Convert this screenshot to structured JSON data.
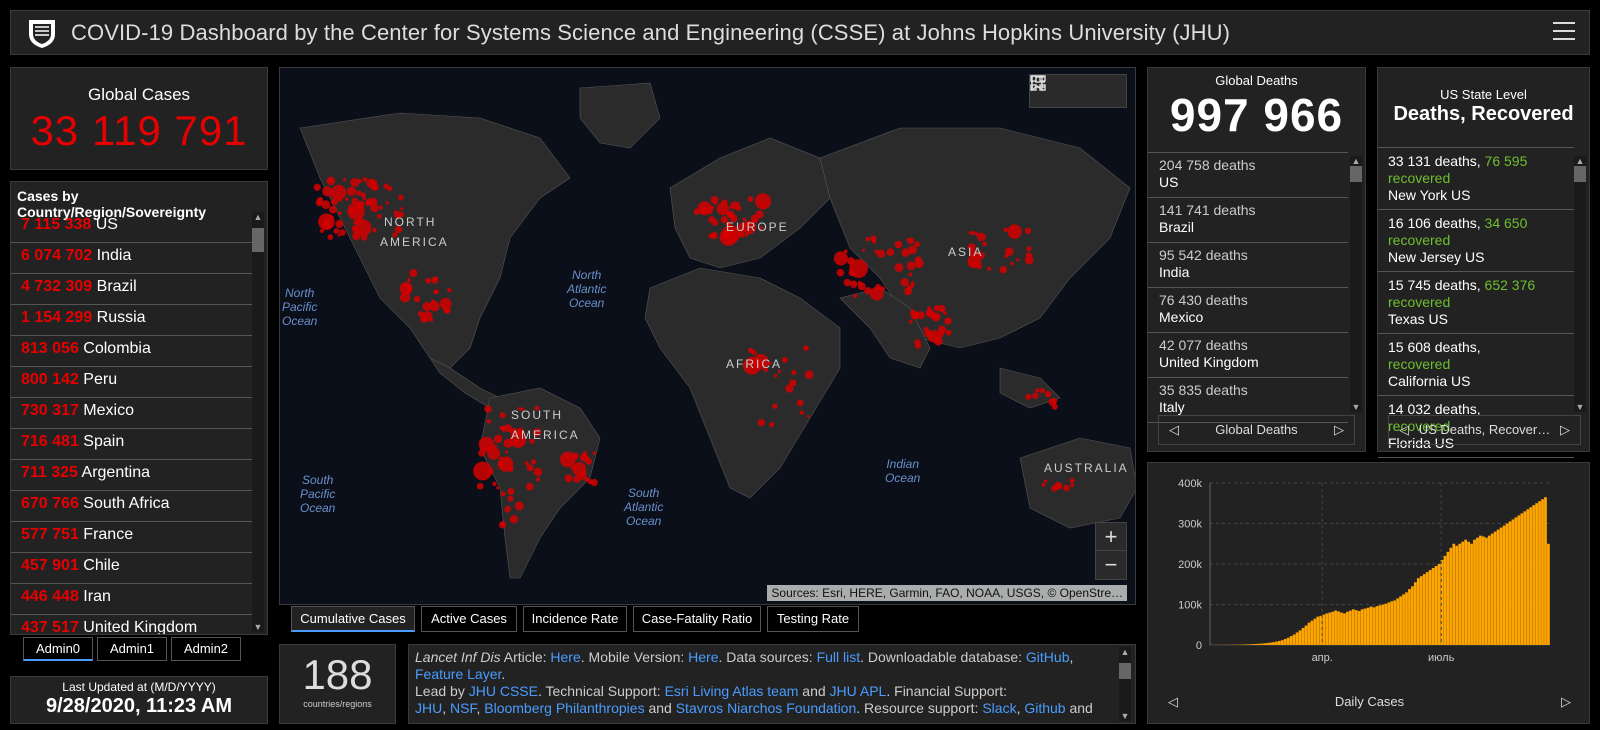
{
  "header": {
    "title": "COVID-19 Dashboard by the Center for Systems Science and Engineering (CSSE) at Johns Hopkins University (JHU)"
  },
  "global_cases": {
    "label": "Global Cases",
    "value": "33 119 791"
  },
  "country_list": {
    "header": "Cases by Country/Region/Sovereignty",
    "items": [
      {
        "count": "7 115 338",
        "name": "US"
      },
      {
        "count": "6 074 702",
        "name": "India"
      },
      {
        "count": "4 732 309",
        "name": "Brazil"
      },
      {
        "count": "1 154 299",
        "name": "Russia"
      },
      {
        "count": "813 056",
        "name": "Colombia"
      },
      {
        "count": "800 142",
        "name": "Peru"
      },
      {
        "count": "730 317",
        "name": "Mexico"
      },
      {
        "count": "716 481",
        "name": "Spain"
      },
      {
        "count": "711 325",
        "name": "Argentina"
      },
      {
        "count": "670 766",
        "name": "South Africa"
      },
      {
        "count": "577 751",
        "name": "France"
      },
      {
        "count": "457 901",
        "name": "Chile"
      },
      {
        "count": "446 448",
        "name": "Iran"
      },
      {
        "count": "437 517",
        "name": "United Kingdom"
      }
    ]
  },
  "admin_tabs": [
    "Admin0",
    "Admin1",
    "Admin2"
  ],
  "last_updated": {
    "label": "Last Updated at (M/D/YYYY)",
    "value": "9/28/2020, 11:23 AM"
  },
  "map": {
    "continents": [
      "NORTH",
      "AMERICA",
      "EUROPE",
      "ASIA",
      "AFRICA",
      "SOUTH",
      "AMERICA",
      "AUSTRALIA"
    ],
    "oceans": [
      [
        "North",
        "Pacific",
        "Ocean"
      ],
      [
        "North",
        "Atlantic",
        "Ocean"
      ],
      [
        "South",
        "Pacific",
        "Ocean"
      ],
      [
        "South",
        "Atlantic",
        "Ocean"
      ],
      [
        "Indian",
        "Ocean"
      ]
    ],
    "attribution": "Sources: Esri, HERE, Garmin, FAO, NOAA, USGS, © OpenStre…",
    "zoom_in": "+",
    "zoom_out": "−",
    "tools": [
      "bookmark-icon",
      "list-icon",
      "qr-icon"
    ]
  },
  "map_tabs": [
    "Cumulative Cases",
    "Active Cases",
    "Incidence Rate",
    "Case-Fatality Ratio",
    "Testing Rate"
  ],
  "countries_count": {
    "value": "188",
    "label": "countries/regions"
  },
  "info": {
    "line1_prefix": "Lancet Inf Dis",
    "line1_a": " Article: ",
    "link_here1": "Here",
    "line1_b": ". Mobile Version: ",
    "link_here2": "Here",
    "line1_c": ". Data sources: ",
    "link_fulllist": "Full list",
    "line1_d": ". Downloadable database: ",
    "link_github": "GitHub",
    "line1_e": ",",
    "link_feature": "Feature Layer",
    "line1_f": ".",
    "line2_a": "Lead by ",
    "link_jhucsse": "JHU CSSE",
    "line2_b": ". Technical Support: ",
    "link_esri": "Esri Living Atlas team",
    "line2_c": " and ",
    "link_jhuapl": "JHU APL",
    "line2_d": ". Financial Support:",
    "link_jhu": "JHU",
    "line3_a": ", ",
    "link_nsf": "NSF",
    "line3_b": ", ",
    "link_bloomberg": "Bloomberg Philanthropies",
    "line3_c": " and ",
    "link_stavros": "Stavros Niarchos Foundation",
    "line3_d": ". Resource support: ",
    "link_slack": "Slack",
    "line3_e": ", ",
    "link_github2": "Github",
    "line3_f": " and"
  },
  "global_deaths": {
    "label": "Global Deaths",
    "value": "997 966",
    "unit": "deaths",
    "items": [
      {
        "count": "204 758",
        "name": "US"
      },
      {
        "count": "141 741",
        "name": "Brazil"
      },
      {
        "count": "95 542",
        "name": "India"
      },
      {
        "count": "76 430",
        "name": "Mexico"
      },
      {
        "count": "42 077",
        "name": "United Kingdom"
      },
      {
        "count": "35 835",
        "name": "Italy"
      }
    ],
    "footer": "Global Deaths"
  },
  "us_panel": {
    "label": "US State Level",
    "title": "Deaths, Recovered",
    "items": [
      {
        "deaths": "33 131 deaths,",
        "recovered_num": "76 595",
        "recovered_word": "recovered",
        "name": "New York US"
      },
      {
        "deaths": "16 106 deaths,",
        "recovered_num": "34 650",
        "recovered_word": "recovered",
        "name": "New Jersey US"
      },
      {
        "deaths": "15 745 deaths,",
        "recovered_num": "652 376",
        "recovered_word": "recovered",
        "name": "Texas US"
      },
      {
        "deaths": "15 608 deaths,",
        "recovered_num": "",
        "recovered_word": "recovered",
        "name": "California US"
      },
      {
        "deaths": "14 032 deaths,",
        "recovered_num": "",
        "recovered_word": "recovered",
        "name": "Florida US"
      }
    ],
    "footer": "US Deaths, Recover…"
  },
  "chart_data": {
    "type": "bar",
    "title": "",
    "ylabel": "",
    "xlabel": "",
    "y_ticks": [
      "0",
      "100k",
      "200k",
      "300k",
      "400k"
    ],
    "x_ticks": [
      "апр.",
      "июль"
    ],
    "ylim": [
      0,
      400000
    ],
    "color": "#ffa500",
    "footer": "Daily Cases",
    "series": [
      {
        "values": [
          100,
          200,
          200,
          300,
          300,
          400,
          500,
          600,
          700,
          800,
          1000,
          1200,
          1500,
          1800,
          2200,
          2600,
          3100,
          3600,
          4200,
          5000,
          6000,
          7000,
          8500,
          10000,
          12000,
          15000,
          18000,
          22000,
          26000,
          31000,
          36000,
          42000,
          48000,
          55000,
          60000,
          65000,
          70000,
          72000,
          75000,
          78000,
          80000,
          82000,
          85000,
          83000,
          80000,
          78000,
          82000,
          85000,
          88000,
          86000,
          84000,
          88000,
          90000,
          92000,
          95000,
          93000,
          96000,
          98000,
          100000,
          102000,
          105000,
          108000,
          110000,
          115000,
          120000,
          125000,
          130000,
          138000,
          145000,
          155000,
          165000,
          170000,
          175000,
          180000,
          185000,
          190000,
          195000,
          200000,
          210000,
          220000,
          230000,
          240000,
          250000,
          245000,
          250000,
          255000,
          260000,
          255000,
          250000,
          260000,
          265000,
          270000,
          268000,
          265000,
          270000,
          275000,
          280000,
          285000,
          290000,
          295000,
          300000,
          305000,
          310000,
          315000,
          320000,
          325000,
          330000,
          335000,
          340000,
          345000,
          350000,
          355000,
          360000,
          365000,
          250000
        ]
      }
    ]
  },
  "colors": {
    "red": "#e60000",
    "green": "#6fbf2f",
    "accent": "#4a9cff",
    "bar": "#ffa500"
  }
}
